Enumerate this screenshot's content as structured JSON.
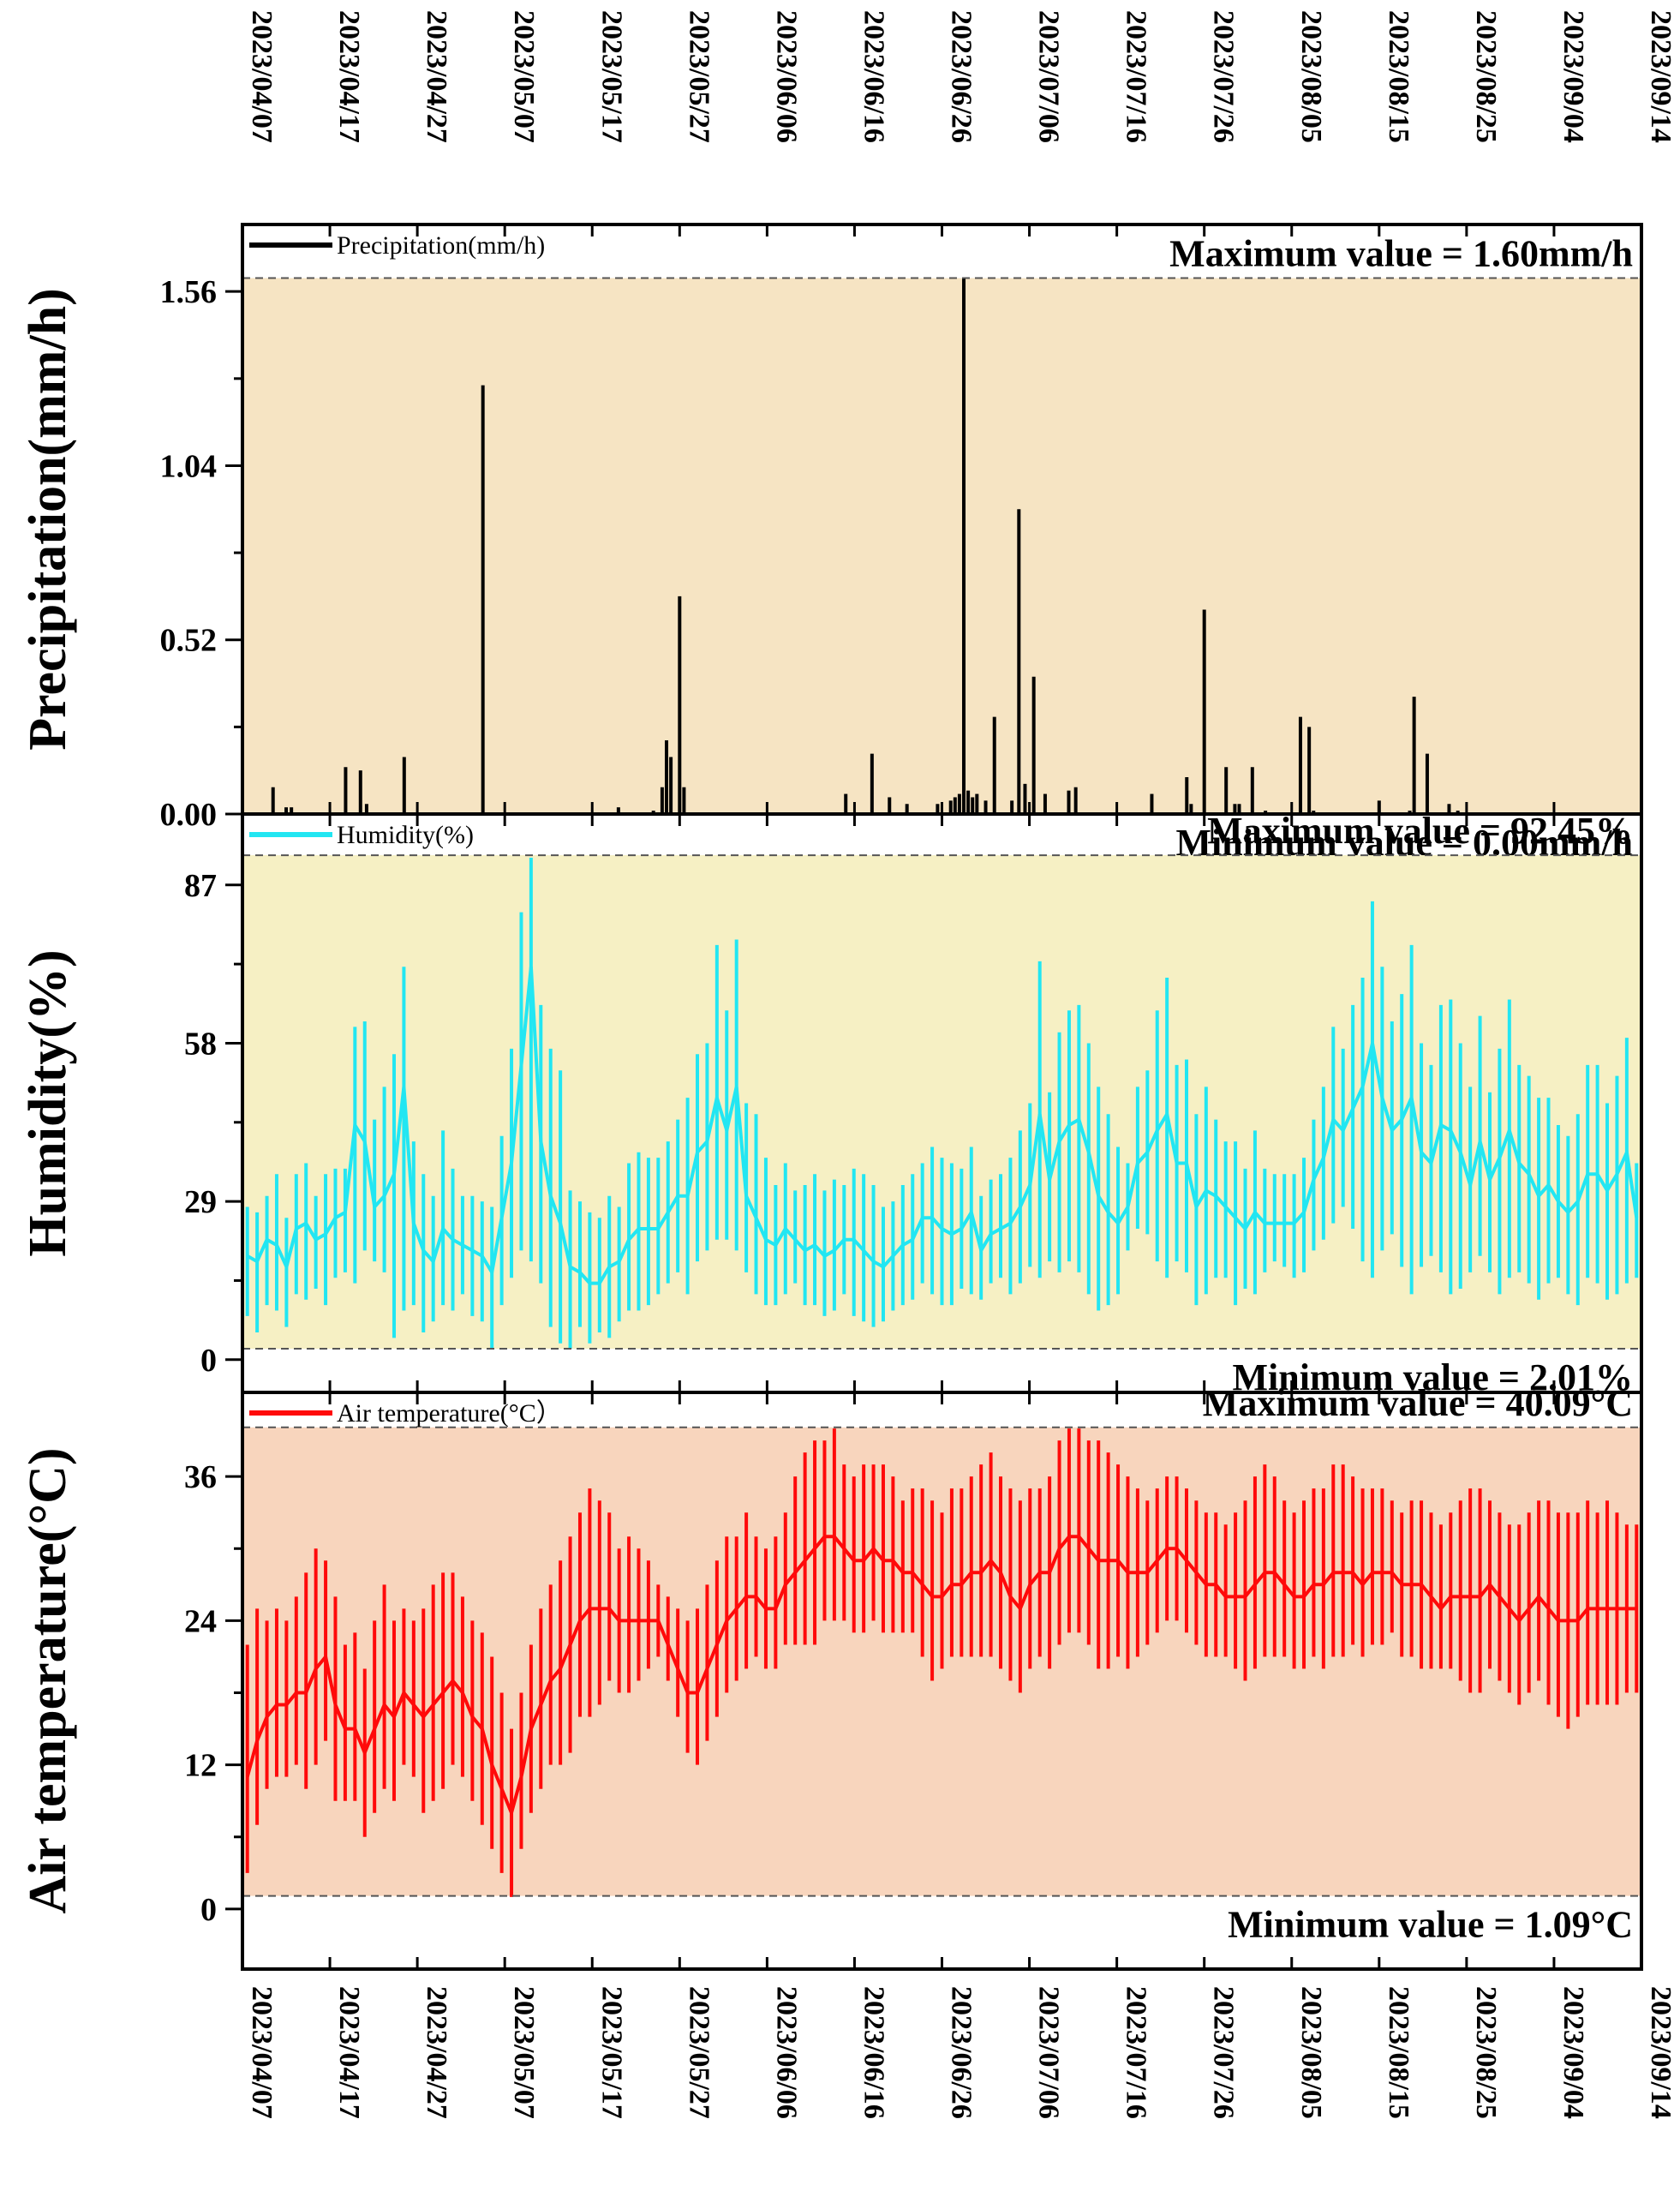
{
  "chart_data": [
    {
      "type": "line",
      "render": "bars",
      "title": "",
      "ylabel": "Precipitation(mm/h)",
      "legend": "Precipitation(mm/h)",
      "legend_position": "top-left",
      "color": "#000000",
      "band_color": "#f6e4c3",
      "ylim": [
        0,
        1.76
      ],
      "yticks": [
        0.0,
        0.52,
        1.04,
        1.56
      ],
      "ytick_labels": [
        "0.00",
        "0.52",
        "1.04",
        "1.56"
      ],
      "max_value": 1.6,
      "min_value": 0.0,
      "max_label": "Maximum value = 1.60mm/h",
      "min_label": "Minimum value = 0.00mm/h",
      "x_days": [
        3.5,
        5.0,
        5.6,
        11.8,
        13.5,
        14.2,
        18.5,
        27.5,
        43.0,
        47.0,
        48.0,
        48.5,
        49.0,
        50.0,
        50.5,
        51.0,
        51.5,
        52.0,
        69.0,
        72.0,
        74.0,
        76.0,
        79.5,
        81.0,
        81.5,
        82.0,
        82.5,
        83.0,
        83.5,
        84.0,
        85.0,
        86.0,
        88.0,
        88.8,
        89.5,
        90.5,
        91.8,
        94.5,
        95.3,
        95.8,
        104.0,
        108.0,
        108.5,
        110.0,
        112.5,
        113.5,
        114.0,
        115.5,
        117.0,
        121.0,
        122.0,
        122.5,
        123.0,
        124.0,
        130.0,
        133.5,
        134.0,
        135.5,
        138.0,
        139.0
      ],
      "values": [
        0.08,
        0.02,
        0.02,
        0.14,
        0.13,
        0.03,
        0.17,
        1.28,
        0.02,
        0.01,
        0.08,
        0.22,
        0.17,
        0.65,
        0.08,
        0.0,
        0.0,
        0.0,
        0.06,
        0.18,
        0.05,
        0.03,
        0.03,
        0.04,
        0.05,
        0.06,
        1.6,
        0.07,
        0.05,
        0.06,
        0.04,
        0.29,
        0.04,
        0.91,
        0.09,
        0.41,
        0.06,
        0.07,
        0.08,
        0.0,
        0.06,
        0.11,
        0.03,
        0.61,
        0.14,
        0.03,
        0.03,
        0.14,
        0.01,
        0.29,
        0.26,
        0.01,
        0.0,
        0.0,
        0.04,
        0.01,
        0.35,
        0.18,
        0.03,
        0.01
      ]
    },
    {
      "type": "line",
      "render": "daily-range",
      "title": "",
      "ylabel": "Humidity(%)",
      "legend": "Humidity(%)",
      "legend_position": "top-left",
      "color": "#22e6f2",
      "band_color": "#f6f0c4",
      "ylim": [
        -6,
        100
      ],
      "yticks": [
        0,
        29,
        58,
        87
      ],
      "ytick_labels": [
        "0",
        "29",
        "58",
        "87"
      ],
      "max_value": 92.45,
      "min_value": 2.01,
      "max_label": "Maximum value = 92.45%",
      "min_label": "Minimum value = 2.01%",
      "daily_min": [
        8,
        5,
        10,
        9,
        6,
        12,
        11,
        13,
        10,
        15,
        16,
        14,
        20,
        18,
        16,
        4,
        9,
        10,
        5,
        7,
        10,
        9,
        12,
        8,
        7,
        2,
        10,
        15,
        20,
        18,
        14,
        6,
        3,
        2,
        6,
        3,
        5,
        4,
        7,
        9,
        9,
        10,
        12,
        14,
        16,
        12,
        18,
        20,
        22,
        22,
        20,
        16,
        12,
        10,
        10,
        12,
        14,
        10,
        10,
        8,
        9,
        12,
        8,
        7,
        6,
        7,
        9,
        10,
        11,
        14,
        12,
        10,
        10,
        13,
        12,
        11,
        14,
        15,
        12,
        14,
        17,
        15,
        18,
        16,
        18,
        16,
        12,
        9,
        10,
        12,
        20,
        24,
        23,
        18,
        15,
        18,
        16,
        10,
        12,
        15,
        15,
        10,
        13,
        12,
        16,
        18,
        17,
        15,
        16,
        20,
        22,
        25,
        28,
        24,
        18,
        15,
        20,
        23,
        17,
        12,
        17,
        19,
        16,
        12,
        13,
        16,
        19,
        16,
        12,
        15,
        16,
        14,
        11,
        14,
        15,
        12,
        10,
        15,
        14,
        11,
        12,
        14,
        15
      ],
      "daily_max": [
        28,
        27,
        30,
        34,
        26,
        34,
        36,
        30,
        34,
        35,
        35,
        61,
        62,
        44,
        50,
        56,
        72,
        40,
        34,
        30,
        42,
        35,
        30,
        30,
        29,
        28,
        41,
        57,
        82,
        92,
        65,
        57,
        53,
        31,
        29,
        27,
        26,
        30,
        28,
        36,
        38,
        37,
        37,
        40,
        44,
        48,
        56,
        58,
        76,
        64,
        77,
        47,
        45,
        37,
        32,
        36,
        31,
        32,
        34,
        31,
        33,
        32,
        35,
        34,
        32,
        28,
        29,
        32,
        34,
        36,
        39,
        37,
        36,
        35,
        39,
        30,
        33,
        34,
        37,
        42,
        47,
        73,
        49,
        60,
        64,
        65,
        58,
        50,
        45,
        39,
        36,
        50,
        53,
        64,
        70,
        54,
        55,
        45,
        50,
        44,
        40,
        40,
        35,
        42,
        35,
        34,
        34,
        34,
        37,
        44,
        50,
        61,
        57,
        65,
        70,
        84,
        72,
        62,
        67,
        76,
        58,
        54,
        65,
        66,
        58,
        50,
        63,
        49,
        57,
        66,
        54,
        52,
        48,
        48,
        43,
        41,
        45,
        54,
        54,
        47,
        52,
        59,
        36
      ],
      "daily_mean": [
        19,
        18,
        22,
        21,
        17,
        24,
        25,
        22,
        23,
        26,
        27,
        43,
        40,
        28,
        30,
        34,
        50,
        25,
        20,
        18,
        24,
        22,
        21,
        20,
        19,
        16,
        26,
        36,
        54,
        72,
        40,
        30,
        25,
        17,
        16,
        14,
        14,
        17,
        18,
        22,
        24,
        24,
        24,
        27,
        30,
        30,
        38,
        40,
        48,
        42,
        50,
        30,
        26,
        22,
        21,
        24,
        22,
        20,
        21,
        19,
        20,
        22,
        22,
        20,
        18,
        17,
        19,
        21,
        22,
        26,
        26,
        24,
        23,
        24,
        27,
        20,
        23,
        24,
        25,
        28,
        32,
        45,
        33,
        40,
        43,
        44,
        38,
        30,
        27,
        25,
        28,
        36,
        38,
        42,
        45,
        36,
        36,
        28,
        31,
        30,
        28,
        26,
        24,
        27,
        25,
        25,
        25,
        25,
        27,
        33,
        37,
        44,
        42,
        46,
        50,
        58,
        48,
        42,
        44,
        48,
        38,
        36,
        43,
        42,
        38,
        32,
        40,
        33,
        37,
        42,
        36,
        34,
        30,
        32,
        29,
        27,
        29,
        34,
        34,
        31,
        34,
        38,
        26
      ]
    },
    {
      "type": "line",
      "render": "daily-range",
      "title": "",
      "ylabel": "Air temperature(°C)",
      "legend": "Air temperature(°C）",
      "legend_position": "top-left",
      "color": "#ff0a0a",
      "band_color": "#f8d5bd",
      "ylim": [
        -5,
        43
      ],
      "yticks": [
        0,
        12,
        24,
        36
      ],
      "ytick_labels": [
        "0",
        "12",
        "24",
        "36"
      ],
      "max_value": 40.09,
      "min_value": 1.09,
      "max_label": "Maximum value = 40.09°C",
      "min_label": "Minimum value = 1.09°C",
      "daily_min": [
        3,
        7,
        10,
        11,
        11,
        12,
        10,
        12,
        14,
        9,
        9,
        9,
        6,
        8,
        10,
        9,
        12,
        11,
        8,
        9,
        10,
        12,
        11,
        9,
        7,
        5,
        3,
        1,
        5,
        8,
        10,
        12,
        12,
        13,
        16,
        16,
        17,
        19,
        18,
        18,
        19,
        20,
        21,
        19,
        16,
        13,
        12,
        14,
        16,
        18,
        19,
        20,
        21,
        20,
        20,
        22,
        22,
        22,
        22,
        24,
        24,
        24,
        23,
        23,
        24,
        23,
        23,
        23,
        23,
        21,
        19,
        20,
        21,
        21,
        21,
        21,
        21,
        20,
        19,
        18,
        20,
        21,
        20,
        22,
        23,
        23,
        22,
        20,
        20,
        21,
        20,
        21,
        22,
        23,
        24,
        24,
        23,
        22,
        21,
        21,
        21,
        20,
        19,
        20,
        21,
        21,
        21,
        20,
        20,
        21,
        20,
        21,
        21,
        22,
        21,
        22,
        22,
        23,
        21,
        21,
        20,
        20,
        20,
        20,
        19,
        18,
        18,
        20,
        19,
        18,
        17,
        18,
        19,
        17,
        16,
        15,
        16,
        17,
        17,
        17,
        17,
        18,
        18
      ],
      "daily_max": [
        22,
        25,
        24,
        25,
        24,
        26,
        28,
        30,
        29,
        26,
        22,
        23,
        20,
        24,
        27,
        24,
        25,
        24,
        25,
        27,
        28,
        28,
        26,
        24,
        23,
        21,
        18,
        15,
        18,
        22,
        25,
        27,
        29,
        31,
        33,
        35,
        34,
        33,
        30,
        31,
        30,
        29,
        27,
        26,
        25,
        24,
        25,
        27,
        29,
        31,
        31,
        33,
        31,
        30,
        31,
        33,
        36,
        38,
        39,
        39,
        40,
        37,
        36,
        37,
        37,
        37,
        36,
        34,
        35,
        35,
        34,
        33,
        35,
        35,
        36,
        37,
        38,
        36,
        35,
        34,
        35,
        35,
        36,
        39,
        40,
        40,
        39,
        39,
        38,
        37,
        36,
        35,
        34,
        35,
        36,
        36,
        35,
        34,
        33,
        33,
        32,
        33,
        34,
        36,
        37,
        36,
        34,
        33,
        34,
        35,
        35,
        37,
        37,
        36,
        35,
        35,
        35,
        34,
        33,
        34,
        34,
        33,
        32,
        33,
        34,
        35,
        35,
        34,
        33,
        32,
        32,
        33,
        34,
        34,
        33,
        33,
        33,
        34,
        33,
        34,
        33,
        32,
        32
      ],
      "daily_mean": [
        11,
        14,
        16,
        17,
        17,
        18,
        18,
        20,
        21,
        17,
        15,
        15,
        13,
        15,
        17,
        16,
        18,
        17,
        16,
        17,
        18,
        19,
        18,
        16,
        15,
        12,
        10,
        8,
        11,
        15,
        17,
        19,
        20,
        22,
        24,
        25,
        25,
        25,
        24,
        24,
        24,
        24,
        24,
        22,
        20,
        18,
        18,
        20,
        22,
        24,
        25,
        26,
        26,
        25,
        25,
        27,
        28,
        29,
        30,
        31,
        31,
        30,
        29,
        29,
        30,
        29,
        29,
        28,
        28,
        27,
        26,
        26,
        27,
        27,
        28,
        28,
        29,
        28,
        26,
        25,
        27,
        28,
        28,
        30,
        31,
        31,
        30,
        29,
        29,
        29,
        28,
        28,
        28,
        29,
        30,
        30,
        29,
        28,
        27,
        27,
        26,
        26,
        26,
        27,
        28,
        28,
        27,
        26,
        26,
        27,
        27,
        28,
        28,
        28,
        27,
        28,
        28,
        28,
        27,
        27,
        27,
        26,
        25,
        26,
        26,
        26,
        26,
        27,
        26,
        25,
        24,
        25,
        26,
        25,
        24,
        24,
        24,
        25,
        25,
        25,
        25,
        25,
        25
      ]
    }
  ],
  "x_axis": {
    "tick_labels": [
      "2023/04/07",
      "2023/04/17",
      "2023/04/27",
      "2023/05/07",
      "2023/05/17",
      "2023/05/27",
      "2023/06/06",
      "2023/06/16",
      "2023/06/26",
      "2023/07/06",
      "2023/07/16",
      "2023/07/26",
      "2023/08/05",
      "2023/08/15",
      "2023/08/25",
      "2023/09/04",
      "2023/09/14"
    ],
    "tick_days": [
      0,
      10,
      20,
      30,
      40,
      50,
      60,
      70,
      80,
      90,
      100,
      110,
      120,
      130,
      140,
      150,
      160
    ],
    "xlim": [
      0,
      160
    ]
  }
}
